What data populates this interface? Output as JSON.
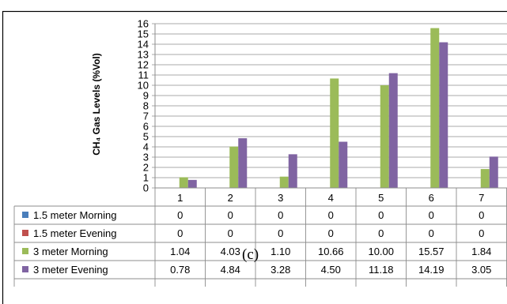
{
  "chart_data": {
    "type": "bar",
    "ylabel": "CH₄ Gas Levels (%Vol)",
    "ylim": [
      0,
      16
    ],
    "yticks": [
      "0",
      "1",
      "2",
      "3",
      "4",
      "5",
      "6",
      "7",
      "8",
      "9",
      "10",
      "11",
      "12",
      "13",
      "14",
      "15",
      "16"
    ],
    "grid": true,
    "legend": "table-below",
    "categories": [
      "1",
      "2",
      "3",
      "4",
      "5",
      "6",
      "7"
    ],
    "series": [
      {
        "name": "1.5 meter Morning",
        "color": "#4a7ebb",
        "values": [
          0,
          0,
          0,
          0,
          0,
          0,
          0
        ],
        "labels": [
          "0",
          "0",
          "0",
          "0",
          "0",
          "0",
          "0"
        ]
      },
      {
        "name": "1.5 meter Evening",
        "color": "#c0504d",
        "values": [
          0,
          0,
          0,
          0,
          0,
          0,
          0
        ],
        "labels": [
          "0",
          "0",
          "0",
          "0",
          "0",
          "0",
          "0"
        ]
      },
      {
        "name": "3 meter Morning",
        "color": "#9bbb59",
        "values": [
          1.04,
          4.03,
          1.1,
          10.66,
          10.0,
          15.57,
          1.84
        ],
        "labels": [
          "1.04",
          "4.03",
          "1.10",
          "10.66",
          "10.00",
          "15.57",
          "1.84"
        ]
      },
      {
        "name": "3 meter Evening",
        "color": "#8064a2",
        "values": [
          0.78,
          4.84,
          3.28,
          4.5,
          11.18,
          14.19,
          3.05
        ],
        "labels": [
          "0.78",
          "4.84",
          "3.28",
          "4.50",
          "11.18",
          "14.19",
          "3.05"
        ]
      }
    ]
  },
  "caption": "(c)"
}
